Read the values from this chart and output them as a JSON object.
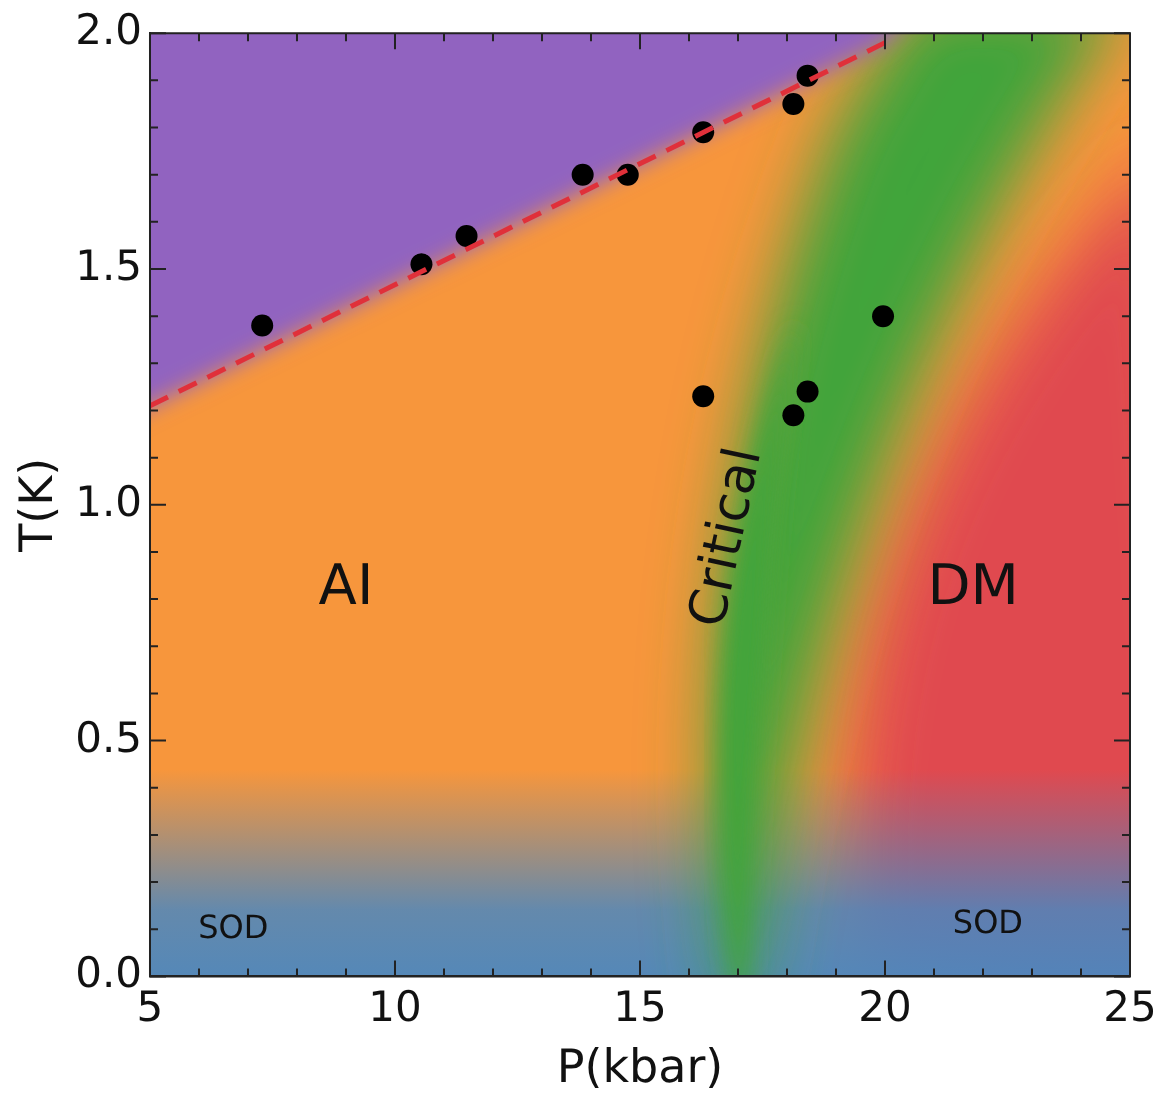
{
  "chart_data": {
    "type": "scatter",
    "xlabel": "P(kbar)",
    "ylabel": "T(K)",
    "xlim": [
      5,
      25
    ],
    "ylim": [
      0,
      2.0
    ],
    "xticks": [
      5,
      {
        "value": 6,
        "label": null
      },
      {
        "value": 7,
        "label": null
      },
      {
        "value": 8,
        "label": null
      },
      {
        "value": 9,
        "label": null
      },
      10,
      {
        "value": 11,
        "label": null
      },
      {
        "value": 12,
        "label": null
      },
      {
        "value": 13,
        "label": null
      },
      {
        "value": 14,
        "label": null
      },
      15,
      {
        "value": 16,
        "label": null
      },
      {
        "value": 17,
        "label": null
      },
      {
        "value": 18,
        "label": null
      },
      {
        "value": 19,
        "label": null
      },
      20,
      {
        "value": 21,
        "label": null
      },
      {
        "value": 22,
        "label": null
      },
      {
        "value": 23,
        "label": null
      },
      {
        "value": 24,
        "label": null
      },
      25
    ],
    "yticks": [
      {
        "value": 0,
        "label": "0.0"
      },
      {
        "value": 0.1,
        "label": null
      },
      {
        "value": 0.2,
        "label": null
      },
      {
        "value": 0.3,
        "label": null
      },
      {
        "value": 0.4,
        "label": null
      },
      0.5,
      {
        "value": 0.6,
        "label": null
      },
      {
        "value": 0.7,
        "label": null
      },
      {
        "value": 0.8,
        "label": null
      },
      {
        "value": 0.9,
        "label": null
      },
      {
        "value": 1,
        "label": "1.0"
      },
      {
        "value": 1.1,
        "label": null
      },
      {
        "value": 1.2,
        "label": null
      },
      {
        "value": 1.3,
        "label": null
      },
      {
        "value": 1.4,
        "label": null
      },
      1.5,
      {
        "value": 1.6,
        "label": null
      },
      {
        "value": 1.7,
        "label": null
      },
      {
        "value": 1.8,
        "label": null
      },
      {
        "value": 1.9,
        "label": null
      },
      {
        "value": 2,
        "label": "2.0"
      }
    ],
    "series": [
      {
        "type": "line",
        "color": "#e0303a",
        "line_style": "dashed",
        "marker": "none",
        "x": [
          5,
          20
        ],
        "values": [
          1.21,
          1.98
        ]
      },
      {
        "type": "scatter",
        "color": "#000000",
        "marker": "circle",
        "x": [
          7.29,
          10.54,
          11.46,
          13.83,
          14.75,
          16.29,
          18.13,
          18.42,
          19.96,
          16.29,
          18.13,
          18.42
        ],
        "values": [
          1.38,
          1.51,
          1.57,
          1.7,
          1.7,
          1.79,
          1.85,
          1.91,
          1.4,
          1.23,
          1.19,
          1.24
        ]
      }
    ],
    "annotations": [
      "AI",
      "Critical",
      "DM",
      "SOD",
      "SOD"
    ],
    "grid": false,
    "legend": false
  }
}
